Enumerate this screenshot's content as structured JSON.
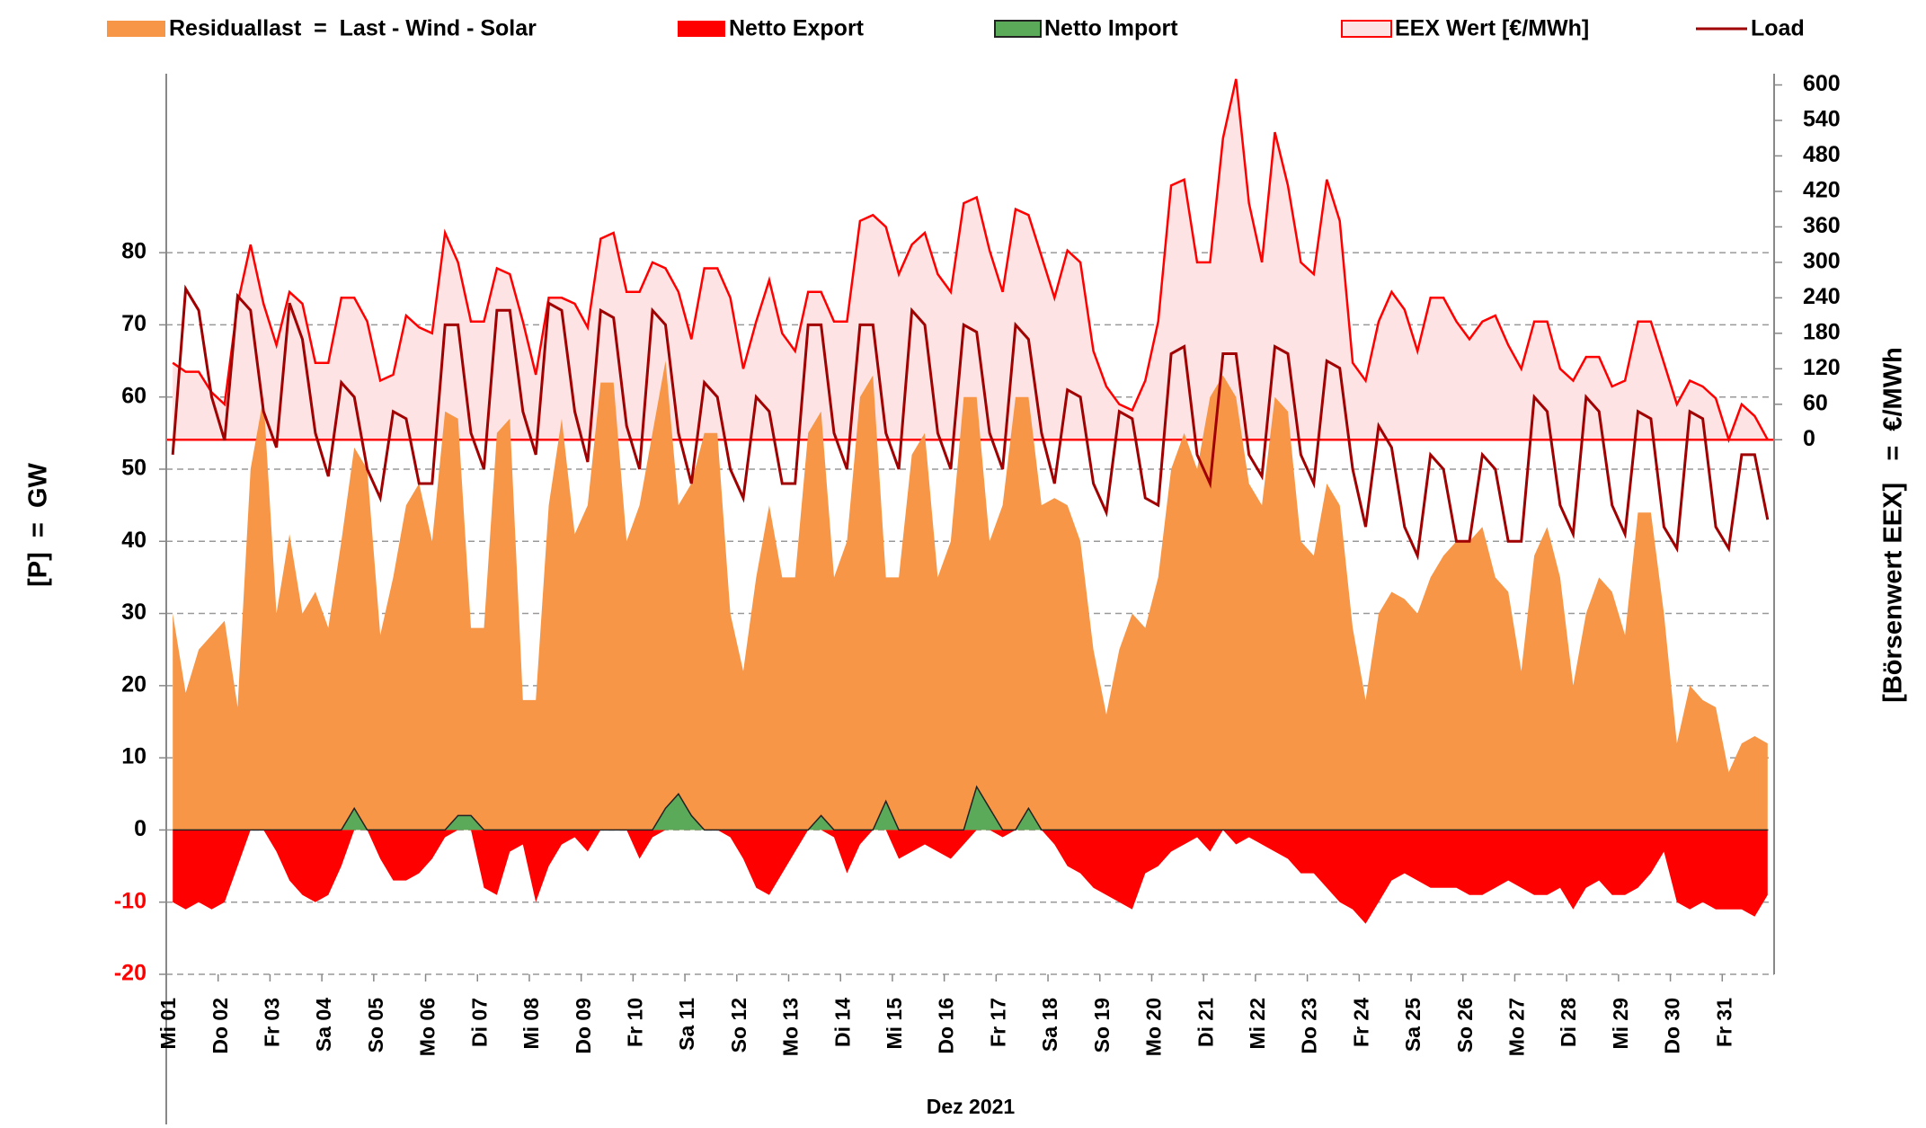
{
  "chart_data": {
    "type": "area",
    "x_label": "Dez 2021",
    "y_label": "[P]  =  GW",
    "y2_label": "[Börsenwert EEX]   =  €/MWh",
    "categories": [
      "Mi 01",
      null,
      null,
      null,
      "Do 02",
      null,
      null,
      null,
      "Fr 03",
      null,
      null,
      null,
      "Sa 04",
      null,
      null,
      null,
      "So 05",
      null,
      null,
      null,
      "Mo 06",
      null,
      null,
      null,
      "Di 07",
      null,
      null,
      null,
      "Mi 08",
      null,
      null,
      null,
      "Do 09",
      null,
      null,
      null,
      "Fr 10",
      null,
      null,
      null,
      "Sa 11",
      null,
      null,
      null,
      "So 12",
      null,
      null,
      null,
      "Mo 13",
      null,
      null,
      null,
      "Di 14",
      null,
      null,
      null,
      "Mi 15",
      null,
      null,
      null,
      "Do 16",
      null,
      null,
      null,
      "Fr 17",
      null,
      null,
      null,
      "Sa 18",
      null,
      null,
      null,
      "So 19",
      null,
      null,
      null,
      "Mo 20",
      null,
      null,
      null,
      "Di 21",
      null,
      null,
      null,
      "Mi 22",
      null,
      null,
      null,
      "Do 23",
      null,
      null,
      null,
      "Fr 24",
      null,
      null,
      null,
      "Sa 25",
      null,
      null,
      null,
      "So 26",
      null,
      null,
      null,
      "Mo 27",
      null,
      null,
      null,
      "Di 28",
      null,
      null,
      null,
      "Mi 29",
      null,
      null,
      null,
      "Do 30",
      null,
      null,
      null,
      "Fr 31",
      null,
      null,
      null
    ],
    "ylim": [
      -20,
      104.8
    ],
    "yticks": [
      -20,
      -10,
      0,
      10,
      20,
      30,
      40,
      50,
      60,
      70,
      80
    ],
    "y2lim": [
      -904,
      619
    ],
    "y2ticks": [
      0,
      60,
      120,
      180,
      240,
      300,
      360,
      420,
      480,
      540,
      600
    ],
    "grid": true,
    "legend": "top",
    "series": [
      {
        "name": "Residuallast  =  Last - Wind - Solar",
        "color": "#f79646",
        "kind": "area",
        "values": [
          30,
          19,
          25,
          27,
          29,
          17,
          50,
          60,
          30,
          41,
          30,
          33,
          28,
          40,
          53,
          50,
          27,
          35,
          45,
          48,
          40,
          58,
          57,
          28,
          28,
          55,
          57,
          18,
          18,
          45,
          57,
          41,
          45,
          62,
          62,
          40,
          45,
          55,
          65,
          45,
          48,
          55,
          55,
          30,
          22,
          35,
          45,
          35,
          35,
          55,
          58,
          35,
          40,
          60,
          63,
          35,
          35,
          52,
          55,
          35,
          40,
          60,
          60,
          40,
          45,
          60,
          60,
          45,
          46,
          45,
          40,
          25,
          16,
          25,
          30,
          28,
          35,
          50,
          55,
          50,
          60,
          63,
          60,
          48,
          45,
          60,
          58,
          40,
          38,
          48,
          45,
          28,
          18,
          30,
          33,
          32,
          30,
          35,
          38,
          40,
          40,
          42,
          35,
          33,
          22,
          38,
          42,
          35,
          20,
          30,
          35,
          33,
          27,
          44,
          44,
          30,
          12,
          20,
          18,
          17,
          8,
          12,
          13,
          12
        ]
      },
      {
        "name": "Netto Export",
        "color": "#ff0000",
        "kind": "area",
        "values": [
          -10,
          -11,
          -10,
          -11,
          -10,
          -5,
          0,
          0,
          -3,
          -7,
          -9,
          -10,
          -9,
          -5,
          0,
          0,
          -4,
          -7,
          -7,
          -6,
          -4,
          -1,
          0,
          0,
          -8,
          -9,
          -3,
          -2,
          -10,
          -5,
          -2,
          -1,
          -3,
          0,
          0,
          0,
          -4,
          -1,
          0,
          0,
          0,
          0,
          0,
          -1,
          -4,
          -8,
          -9,
          -6,
          -3,
          0,
          0,
          -1,
          -6,
          -2,
          0,
          0,
          -4,
          -3,
          -2,
          -3,
          -4,
          -2,
          0,
          0,
          -1,
          0,
          0,
          0,
          -2,
          -5,
          -6,
          -8,
          -9,
          -10,
          -11,
          -6,
          -5,
          -3,
          -2,
          -1,
          -3,
          0,
          -2,
          -1,
          -2,
          -3,
          -4,
          -6,
          -6,
          -8,
          -10,
          -11,
          -13,
          -10,
          -7,
          -6,
          -7,
          -8,
          -8,
          -8,
          -9,
          -9,
          -8,
          -7,
          -8,
          -9,
          -9,
          -8,
          -11,
          -8,
          -7,
          -9,
          -9,
          -8,
          -6,
          -3,
          -10,
          -11,
          -10,
          -11,
          -11,
          -11,
          -12,
          -9
        ]
      },
      {
        "name": "Netto Import",
        "color": "#5aaa5a",
        "kind": "area",
        "values": [
          0,
          0,
          0,
          0,
          0,
          0,
          0,
          0,
          0,
          0,
          0,
          0,
          0,
          0,
          3,
          0,
          0,
          0,
          0,
          0,
          0,
          0,
          2,
          2,
          0,
          0,
          0,
          0,
          0,
          0,
          0,
          0,
          0,
          0,
          0,
          0,
          0,
          0,
          3,
          5,
          2,
          0,
          0,
          0,
          0,
          0,
          0,
          0,
          0,
          0,
          2,
          0,
          0,
          0,
          0,
          4,
          0,
          0,
          0,
          0,
          0,
          0,
          6,
          3,
          0,
          0,
          3,
          0,
          0,
          0,
          0,
          0,
          0,
          0,
          0,
          0,
          0,
          0,
          0,
          0,
          0,
          0,
          0,
          0,
          0,
          0,
          0,
          0,
          0,
          0,
          0,
          0,
          0,
          0,
          0,
          0,
          0,
          0,
          0,
          0,
          0,
          0,
          0,
          0,
          0,
          0,
          0,
          0,
          0,
          0,
          0,
          0,
          0,
          0,
          0,
          0,
          0,
          0,
          0,
          0,
          0,
          0,
          0,
          0
        ]
      },
      {
        "name": "EEX Wert [€/MWh]",
        "color": "#ff0000",
        "fill": "#fde3e3",
        "kind": "area",
        "axis": "y2",
        "values": [
          130,
          115,
          115,
          80,
          60,
          230,
          330,
          230,
          160,
          250,
          230,
          130,
          130,
          240,
          240,
          200,
          100,
          110,
          210,
          190,
          180,
          350,
          300,
          200,
          200,
          290,
          280,
          200,
          110,
          240,
          240,
          230,
          190,
          340,
          350,
          250,
          250,
          300,
          290,
          250,
          170,
          290,
          290,
          240,
          120,
          200,
          270,
          180,
          150,
          250,
          250,
          200,
          200,
          370,
          380,
          360,
          280,
          330,
          350,
          280,
          250,
          400,
          410,
          320,
          250,
          390,
          380,
          310,
          240,
          320,
          300,
          150,
          90,
          60,
          50,
          100,
          200,
          430,
          440,
          300,
          300,
          510,
          610,
          400,
          300,
          520,
          430,
          300,
          280,
          440,
          370,
          130,
          100,
          200,
          250,
          220,
          150,
          240,
          240,
          200,
          170,
          200,
          210,
          160,
          120,
          200,
          200,
          120,
          100,
          140,
          140,
          90,
          100,
          200,
          200,
          130,
          60,
          100,
          90,
          70,
          0,
          60,
          40,
          0
        ]
      },
      {
        "name": "Load",
        "color": "#a00000",
        "kind": "line",
        "values": [
          52,
          75,
          72,
          60,
          54,
          74,
          72,
          58,
          53,
          73,
          68,
          55,
          49,
          62,
          60,
          50,
          46,
          58,
          57,
          48,
          48,
          70,
          70,
          55,
          50,
          72,
          72,
          58,
          52,
          73,
          72,
          58,
          51,
          72,
          71,
          56,
          50,
          72,
          70,
          55,
          48,
          62,
          60,
          50,
          46,
          60,
          58,
          48,
          48,
          70,
          70,
          55,
          50,
          70,
          70,
          55,
          50,
          72,
          70,
          55,
          50,
          70,
          69,
          55,
          50,
          70,
          68,
          55,
          48,
          61,
          60,
          48,
          44,
          58,
          57,
          46,
          45,
          66,
          67,
          52,
          48,
          66,
          66,
          52,
          49,
          67,
          66,
          52,
          48,
          65,
          64,
          50,
          42,
          56,
          53,
          42,
          38,
          52,
          50,
          40,
          40,
          52,
          50,
          40,
          40,
          60,
          58,
          45,
          41,
          60,
          58,
          45,
          41,
          58,
          57,
          42,
          39,
          58,
          57,
          42,
          39,
          52,
          52,
          43
        ]
      }
    ]
  }
}
